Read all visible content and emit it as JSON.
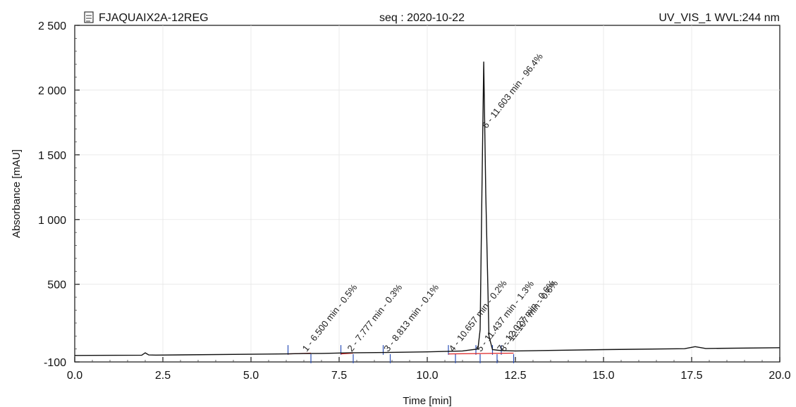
{
  "header": {
    "sample": "FJAQUAIX2A-12REG",
    "sequence": "seq : 2020-10-22",
    "detector": "UV_VIS_1 WVL:244 nm",
    "icon": "sample-document-icon"
  },
  "chart_data": {
    "type": "line",
    "title": "",
    "xlabel": "Time [min]",
    "ylabel": "Absorbance [mAU]",
    "xlim": [
      0.0,
      20.0
    ],
    "ylim": [
      -100,
      2500
    ],
    "x_ticks": [
      "0.0",
      "2.5",
      "5.0",
      "7.5",
      "10.0",
      "12.5",
      "15.0",
      "17.5",
      "20.0"
    ],
    "y_ticks": [
      "-100",
      "500",
      "1 000",
      "1 500",
      "2 000",
      "2 500"
    ],
    "grid": true,
    "series": [
      {
        "values_x": [
          0.0,
          1.9,
          2.0,
          2.1,
          2.3,
          6.0,
          6.5,
          7.0,
          7.777,
          8.813,
          10.0,
          10.657,
          11.0,
          11.437,
          11.5,
          11.55,
          11.603,
          11.66,
          11.75,
          11.85,
          12.027,
          12.1,
          12.5,
          15.0,
          17.3,
          17.6,
          17.9,
          20.0
        ],
        "values_y": [
          -50,
          -48,
          -30,
          -46,
          -47,
          -38,
          -35,
          -34,
          -30,
          -27,
          -22,
          -18,
          -15,
          0,
          150,
          1200,
          2220,
          1200,
          100,
          -5,
          -10,
          -12,
          -15,
          -5,
          2,
          18,
          4,
          10
        ]
      }
    ],
    "peaks": [
      {
        "num": "1",
        "rt": 6.5,
        "label": "1 - 6.500 min - 0.5%"
      },
      {
        "num": "2",
        "rt": 7.777,
        "label": "2 - 7.777 min - 0.3%"
      },
      {
        "num": "3",
        "rt": 8.813,
        "label": "3 - 8.813 min - 0.1%"
      },
      {
        "num": "4",
        "rt": 10.657,
        "label": "4 - 10.657 min - 0.2%"
      },
      {
        "num": "5",
        "rt": 11.437,
        "label": "5 - 11.437 min - 1.3%"
      },
      {
        "num": "6",
        "rt": 11.603,
        "label": "6 - 11.603 min - 96.4%"
      },
      {
        "num": "7",
        "rt": 12.027,
        "label": "7 - 12.027 min - 0.6%"
      },
      {
        "num": "8",
        "rt": 12.107,
        "label": "8 - 12.107 min - 0.6%"
      }
    ],
    "integration_markers_x": [
      6.05,
      6.7,
      7.55,
      7.9,
      8.75,
      8.95,
      10.6,
      10.8,
      11.38,
      11.5,
      11.85,
      11.98,
      12.1,
      12.45
    ],
    "baseline_segments": [
      [
        6.05,
        6.7
      ],
      [
        7.55,
        7.9
      ],
      [
        10.6,
        12.45
      ]
    ]
  }
}
